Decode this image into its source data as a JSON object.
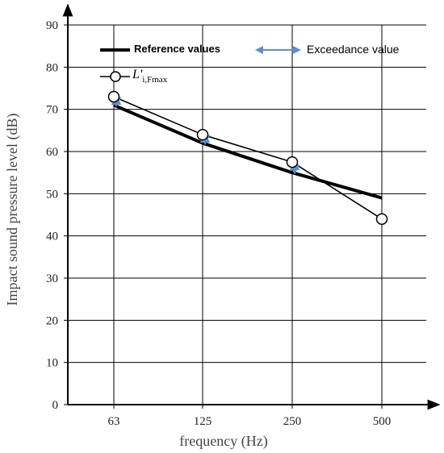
{
  "chart_data": {
    "type": "line",
    "x_label": "frequency (Hz)",
    "y_label": "Impact sound pressure level (dB)",
    "categories": [
      "63",
      "125",
      "250",
      "500"
    ],
    "y_ticks": [
      "0",
      "10",
      "20",
      "30",
      "40",
      "50",
      "60",
      "70",
      "80",
      "90"
    ],
    "ylim": [
      0,
      90
    ],
    "grid": true,
    "legend_position": "top",
    "series": [
      {
        "name": "Reference values",
        "values": [
          71,
          62,
          55,
          49
        ],
        "style": "thick-line",
        "color": "#000000"
      },
      {
        "name": "L'i,Fmax",
        "values": [
          73,
          64,
          57.5,
          44
        ],
        "style": "line-open-circle-markers",
        "color": "#000000"
      }
    ],
    "exceedance": {
      "name": "Exceedance value",
      "color": "#5b8fd0",
      "ranges": [
        [
          71,
          73
        ],
        [
          62,
          64
        ],
        [
          55,
          57.5
        ]
      ]
    },
    "legend": {
      "reference_label": "Reference values",
      "exceedance_label": "Exceedance value",
      "measured_symbol": "L'",
      "measured_subscript": "i,Fmax"
    }
  }
}
